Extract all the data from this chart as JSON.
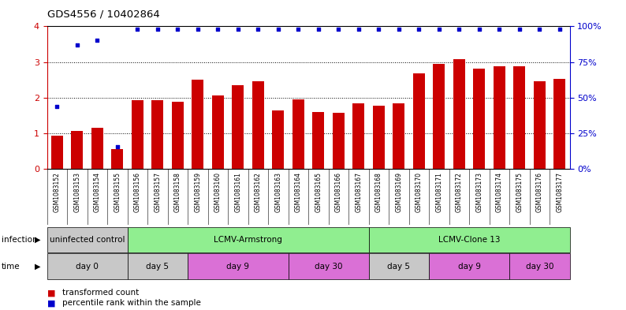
{
  "title": "GDS4556 / 10402864",
  "samples": [
    "GSM1083152",
    "GSM1083153",
    "GSM1083154",
    "GSM1083155",
    "GSM1083156",
    "GSM1083157",
    "GSM1083158",
    "GSM1083159",
    "GSM1083160",
    "GSM1083161",
    "GSM1083162",
    "GSM1083163",
    "GSM1083164",
    "GSM1083165",
    "GSM1083166",
    "GSM1083167",
    "GSM1083168",
    "GSM1083169",
    "GSM1083170",
    "GSM1083171",
    "GSM1083172",
    "GSM1083173",
    "GSM1083174",
    "GSM1083175",
    "GSM1083176",
    "GSM1083177"
  ],
  "transformed_count": [
    0.93,
    1.07,
    1.16,
    0.55,
    1.93,
    1.93,
    1.88,
    2.5,
    2.07,
    2.35,
    2.45,
    1.65,
    1.95,
    1.6,
    1.58,
    1.85,
    1.78,
    1.85,
    2.68,
    2.95,
    3.08,
    2.82,
    2.88,
    2.87,
    2.45,
    2.52
  ],
  "percentile_rank": [
    1.75,
    3.47,
    3.6,
    0.62,
    3.93,
    3.93,
    3.93,
    3.93,
    3.93,
    3.93,
    3.93,
    3.93,
    3.93,
    3.93,
    3.93,
    3.93,
    3.93,
    3.93,
    3.93,
    3.93,
    3.93,
    3.93,
    3.93,
    3.93,
    3.93,
    3.93
  ],
  "bar_color": "#cc0000",
  "dot_color": "#0000cc",
  "ylim": [
    0,
    4
  ],
  "yticks": [
    0,
    1,
    2,
    3,
    4
  ],
  "y2ticks": [
    0,
    25,
    50,
    75,
    100
  ],
  "y2labels": [
    "0%",
    "25%",
    "50%",
    "75%",
    "100%"
  ],
  "infection_groups": [
    {
      "label": "uninfected control",
      "start": 0,
      "end": 3,
      "color": "#c8c8c8"
    },
    {
      "label": "LCMV-Armstrong",
      "start": 4,
      "end": 15,
      "color": "#90ee90"
    },
    {
      "label": "LCMV-Clone 13",
      "start": 16,
      "end": 25,
      "color": "#90ee90"
    }
  ],
  "time_groups": [
    {
      "label": "day 0",
      "start": 0,
      "end": 3,
      "color": "#c8c8c8"
    },
    {
      "label": "day 5",
      "start": 4,
      "end": 6,
      "color": "#c8c8c8"
    },
    {
      "label": "day 9",
      "start": 7,
      "end": 11,
      "color": "#da70d6"
    },
    {
      "label": "day 30",
      "start": 12,
      "end": 15,
      "color": "#da70d6"
    },
    {
      "label": "day 5",
      "start": 16,
      "end": 18,
      "color": "#c8c8c8"
    },
    {
      "label": "day 9",
      "start": 19,
      "end": 22,
      "color": "#da70d6"
    },
    {
      "label": "day 30",
      "start": 23,
      "end": 25,
      "color": "#da70d6"
    }
  ],
  "legend_items": [
    {
      "label": "transformed count",
      "color": "#cc0000"
    },
    {
      "label": "percentile rank within the sample",
      "color": "#0000cc"
    }
  ],
  "background_color": "#ffffff",
  "tick_label_color": "#cc0000",
  "right_axis_color": "#0000cc",
  "xlabel_bg": "#d8d8d8"
}
